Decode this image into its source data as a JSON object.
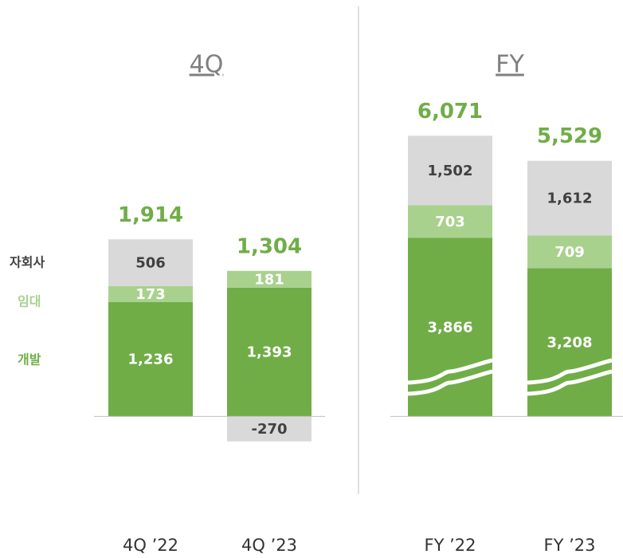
{
  "chart_data": [
    {
      "type": "stacked_bar",
      "title": "4Q",
      "categories": [
        "4Q ’22",
        "4Q ’23"
      ],
      "ylim": [
        -600,
        3400
      ],
      "axis_break": false,
      "series": [
        {
          "name": "개발",
          "color": "#70ad47",
          "legend_color": "#70ad47",
          "label_color": "#ffffff",
          "values": [
            1236,
            1393
          ],
          "value_labels": [
            "1,236",
            "1,393"
          ]
        },
        {
          "name": "임대",
          "color": "#a9d18e",
          "legend_color": "#a9d18e",
          "label_color": "#ffffff",
          "values": [
            173,
            181
          ],
          "value_labels": [
            "173",
            "181"
          ]
        },
        {
          "name": "자회사",
          "color": "#d9d9d9",
          "legend_color": "#404040",
          "label_color": "#404040",
          "values": [
            506,
            -270
          ],
          "value_labels": [
            "506",
            "-270"
          ]
        }
      ],
      "totals": [
        1914,
        1304
      ],
      "total_labels": [
        "1,914",
        "1,304"
      ],
      "total_color": "#70ad47"
    },
    {
      "type": "stacked_bar",
      "title": "FY",
      "categories": [
        "FY ’22",
        "FY ’23"
      ],
      "ylim": [
        -1200,
        6800
      ],
      "axis_break": true,
      "series": [
        {
          "color": "#70ad47",
          "label_color": "#ffffff",
          "values": [
            3866,
            3208
          ],
          "value_labels": [
            "3,866",
            "3,208"
          ]
        },
        {
          "color": "#a9d18e",
          "label_color": "#ffffff",
          "values": [
            703,
            709
          ],
          "value_labels": [
            "703",
            "709"
          ]
        },
        {
          "color": "#d9d9d9",
          "label_color": "#404040",
          "values": [
            1502,
            1612
          ],
          "value_labels": [
            "1,502",
            "1,612"
          ]
        }
      ],
      "totals": [
        6071,
        5529
      ],
      "total_labels": [
        "6,071",
        "5,529"
      ],
      "total_color": "#70ad47"
    }
  ]
}
